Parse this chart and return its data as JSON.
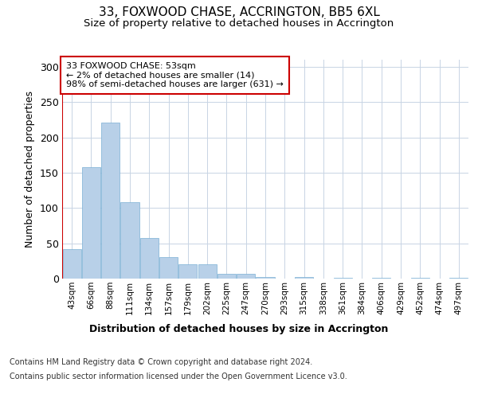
{
  "title": "33, FOXWOOD CHASE, ACCRINGTON, BB5 6XL",
  "subtitle": "Size of property relative to detached houses in Accrington",
  "xlabel": "Distribution of detached houses by size in Accrington",
  "ylabel": "Number of detached properties",
  "footer_line1": "Contains HM Land Registry data © Crown copyright and database right 2024.",
  "footer_line2": "Contains public sector information licensed under the Open Government Licence v3.0.",
  "annotation_title": "33 FOXWOOD CHASE: 53sqm",
  "annotation_line2": "← 2% of detached houses are smaller (14)",
  "annotation_line3": "98% of semi-detached houses are larger (631) →",
  "bar_color": "#b8d0e8",
  "bar_edge_color": "#7aafd4",
  "annotation_box_color": "#ffffff",
  "annotation_box_edge_color": "#cc0000",
  "property_line_color": "#cc0000",
  "background_color": "#ffffff",
  "grid_color": "#c8d4e4",
  "categories": [
    "43sqm",
    "66sqm",
    "88sqm",
    "111sqm",
    "134sqm",
    "157sqm",
    "179sqm",
    "202sqm",
    "225sqm",
    "247sqm",
    "270sqm",
    "293sqm",
    "315sqm",
    "338sqm",
    "361sqm",
    "384sqm",
    "406sqm",
    "429sqm",
    "452sqm",
    "474sqm",
    "497sqm"
  ],
  "values": [
    42,
    158,
    221,
    108,
    57,
    30,
    20,
    20,
    7,
    7,
    2,
    0,
    2,
    0,
    1,
    0,
    1,
    0,
    1,
    0,
    1
  ],
  "ylim": [
    0,
    310
  ],
  "yticks": [
    0,
    50,
    100,
    150,
    200,
    250,
    300
  ],
  "figsize": [
    6.0,
    5.0
  ],
  "dpi": 100
}
